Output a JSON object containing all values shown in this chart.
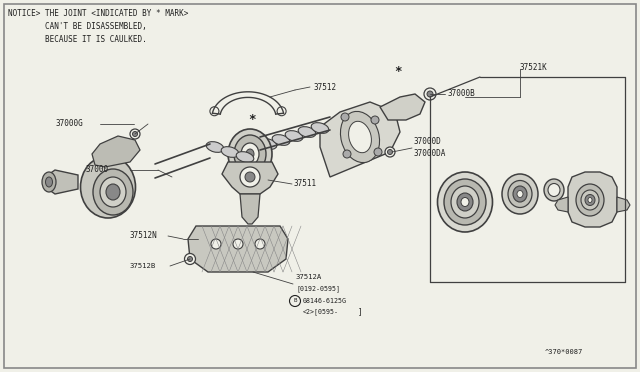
{
  "bg_color": "#f0f0e8",
  "line_color": "#404040",
  "text_color": "#202020",
  "figsize": [
    6.4,
    3.72
  ],
  "dpi": 100,
  "notice": [
    "NOTICE> THE JOINT <INDICATED BY * MARK>",
    "        CAN'T BE DISASSEMBLED,",
    "        BECAUSE IT IS CAULKED."
  ]
}
